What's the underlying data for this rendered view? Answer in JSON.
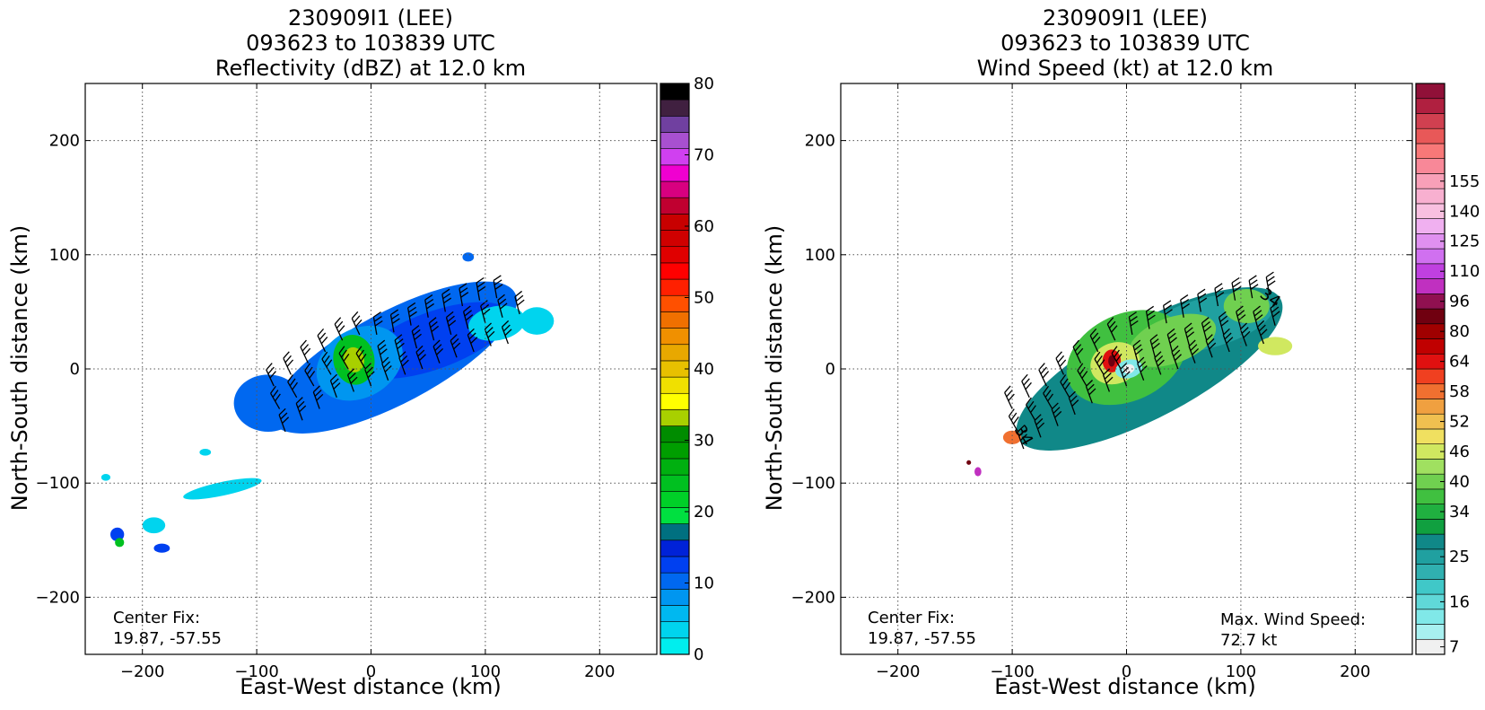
{
  "chart_data": [
    {
      "type": "heatmap",
      "title": [
        "230909I1 (LEE)",
        "093623 to 103839 UTC",
        "Reflectivity (dBZ) at 12.0 km"
      ],
      "xlabel": "East-West distance (km)",
      "ylabel": "North-South distance (km)",
      "xlim": [
        -250,
        250
      ],
      "ylim": [
        -250,
        250
      ],
      "xticks": [
        -200,
        -100,
        0,
        100,
        200
      ],
      "yticks": [
        -200,
        -100,
        0,
        100,
        200
      ],
      "xtick_labels": [
        "−200",
        "−100",
        "0",
        "100",
        "200"
      ],
      "ytick_labels": [
        "−200",
        "−100",
        "0",
        "100",
        "200"
      ],
      "grid": true,
      "colorbar": {
        "min": 0,
        "max": 80,
        "ticks": [
          "0",
          "10",
          "20",
          "30",
          "40",
          "50",
          "60",
          "70",
          "80"
        ],
        "tick_values": [
          0,
          10,
          20,
          30,
          40,
          50,
          60,
          70,
          80
        ],
        "colors": [
          "#00eeee",
          "#00d4ee",
          "#00b8f0",
          "#0096f0",
          "#0068f0",
          "#0040f0",
          "#0022d8",
          "#007080",
          "#00e040",
          "#00d028",
          "#00c020",
          "#00b010",
          "#009e00",
          "#008c00",
          "#a8d000",
          "#ffff00",
          "#f0e000",
          "#e8c000",
          "#e8a800",
          "#f09000",
          "#f07000",
          "#ff5000",
          "#ff2000",
          "#ff0000",
          "#e00000",
          "#d00000",
          "#c80000",
          "#c00030",
          "#d80080",
          "#f000d0",
          "#d040f0",
          "#a850d0",
          "#7040a0",
          "#402040",
          "#000000"
        ]
      },
      "annotations": {
        "center_fix_label": "Center Fix:",
        "center_fix_value": "19.87, -57.55"
      },
      "blobs": [
        {
          "x": 20,
          "y": 10,
          "rx": 120,
          "ry": 40,
          "rot": 28,
          "color": "#0068f0"
        },
        {
          "x": 55,
          "y": 25,
          "rx": 70,
          "ry": 25,
          "rot": 20,
          "color": "#0040f0"
        },
        {
          "x": -90,
          "y": -30,
          "rx": 30,
          "ry": 25,
          "rot": 0,
          "color": "#0068f0"
        },
        {
          "x": -10,
          "y": 5,
          "rx": 40,
          "ry": 30,
          "rot": 30,
          "color": "#0096f0"
        },
        {
          "x": -15,
          "y": 8,
          "rx": 18,
          "ry": 22,
          "rot": 10,
          "color": "#00c020"
        },
        {
          "x": -15,
          "y": 8,
          "rx": 9,
          "ry": 11,
          "rot": 10,
          "color": "#a8d000"
        },
        {
          "x": 110,
          "y": 40,
          "rx": 25,
          "ry": 15,
          "rot": 10,
          "color": "#00d4ee"
        },
        {
          "x": 145,
          "y": 42,
          "rx": 15,
          "ry": 12,
          "rot": 0,
          "color": "#00d4ee"
        },
        {
          "x": 85,
          "y": 98,
          "rx": 5,
          "ry": 4,
          "rot": 0,
          "color": "#0068f0"
        },
        {
          "x": -130,
          "y": -105,
          "rx": 35,
          "ry": 6,
          "rot": 12,
          "color": "#00d4ee"
        },
        {
          "x": -190,
          "y": -137,
          "rx": 10,
          "ry": 7,
          "rot": 0,
          "color": "#00d4ee"
        },
        {
          "x": -183,
          "y": -157,
          "rx": 7,
          "ry": 4,
          "rot": 0,
          "color": "#0040f0"
        },
        {
          "x": -222,
          "y": -145,
          "rx": 6,
          "ry": 6,
          "rot": 0,
          "color": "#0040f0"
        },
        {
          "x": -220,
          "y": -152,
          "rx": 4,
          "ry": 4,
          "rot": 0,
          "color": "#00c020"
        },
        {
          "x": -232,
          "y": -95,
          "rx": 4,
          "ry": 3,
          "rot": 0,
          "color": "#00d4ee"
        },
        {
          "x": -145,
          "y": -73,
          "rx": 5,
          "ry": 3,
          "rot": 0,
          "color": "#00d4ee"
        }
      ],
      "barbs": [
        [
          -85,
          -15
        ],
        [
          -70,
          -5
        ],
        [
          -55,
          5
        ],
        [
          -40,
          15
        ],
        [
          -25,
          25
        ],
        [
          -10,
          30
        ],
        [
          5,
          30
        ],
        [
          20,
          32
        ],
        [
          35,
          38
        ],
        [
          50,
          45
        ],
        [
          65,
          50
        ],
        [
          80,
          55
        ],
        [
          95,
          60
        ],
        [
          110,
          62
        ],
        [
          -80,
          -35
        ],
        [
          -65,
          -25
        ],
        [
          -50,
          -15
        ],
        [
          -35,
          -5
        ],
        [
          -20,
          0
        ],
        [
          -5,
          0
        ],
        [
          10,
          5
        ],
        [
          25,
          10
        ],
        [
          40,
          18
        ],
        [
          55,
          25
        ],
        [
          70,
          30
        ],
        [
          85,
          35
        ],
        [
          100,
          40
        ],
        [
          115,
          45
        ],
        [
          130,
          48
        ],
        [
          -75,
          -55
        ],
        [
          -60,
          -45
        ],
        [
          -45,
          -35
        ],
        [
          -30,
          -25
        ],
        [
          -15,
          -20
        ],
        [
          0,
          -15
        ],
        [
          15,
          -10
        ],
        [
          30,
          -5
        ],
        [
          45,
          0
        ],
        [
          60,
          5
        ],
        [
          75,
          10
        ],
        [
          90,
          15
        ],
        [
          105,
          20
        ],
        [
          120,
          22
        ]
      ]
    },
    {
      "type": "heatmap",
      "title": [
        "230909I1 (LEE)",
        "093623 to 103839 UTC",
        "Wind Speed (kt) at 12.0 km"
      ],
      "xlabel": "East-West distance (km)",
      "ylabel": "North-South distance (km)",
      "xlim": [
        -250,
        250
      ],
      "ylim": [
        -250,
        250
      ],
      "xticks": [
        -200,
        -100,
        0,
        100,
        200
      ],
      "yticks": [
        -200,
        -100,
        0,
        100,
        200
      ],
      "xtick_labels": [
        "−200",
        "−100",
        "0",
        "100",
        "200"
      ],
      "ytick_labels": [
        "−200",
        "−100",
        "0",
        "100",
        "200"
      ],
      "grid": true,
      "colorbar": {
        "ticks": [
          "7",
          "16",
          "25",
          "34",
          "40",
          "46",
          "52",
          "58",
          "64",
          "80",
          "96",
          "110",
          "125",
          "140",
          "155"
        ],
        "tick_index": [
          0.5,
          3.5,
          6.5,
          9.5,
          11.5,
          13.5,
          15.5,
          17.5,
          19.5,
          21.5,
          23.5,
          25.5,
          27.5,
          29.5,
          31.5
        ],
        "colors": [
          "#f0f0f0",
          "#a8f0f0",
          "#80e8e8",
          "#60d8d8",
          "#40c8c8",
          "#30b0b0",
          "#20a0a0",
          "#108888",
          "#10a040",
          "#20b040",
          "#40c040",
          "#70d050",
          "#a0e060",
          "#d0e860",
          "#f0e060",
          "#f0c050",
          "#f0a040",
          "#f07030",
          "#f04020",
          "#e01010",
          "#c00000",
          "#a00000",
          "#700010",
          "#901050",
          "#c030c0",
          "#c040e0",
          "#d070f0",
          "#e090f0",
          "#f0b0f0",
          "#f8c0e0",
          "#f8b0d0",
          "#f8a0b8",
          "#f88898",
          "#f87878",
          "#e85858",
          "#d04050",
          "#b02040",
          "#901038"
        ]
      },
      "annotations": {
        "center_fix_label": "Center Fix:",
        "center_fix_value": "19.87, -57.55",
        "max_wind_label": "Max. Wind Speed:",
        "max_wind_value": "72.7 kt",
        "contour_labels": [
          "34",
          "34"
        ]
      },
      "blobs": [
        {
          "x": 20,
          "y": 0,
          "rx": 130,
          "ry": 42,
          "rot": 28,
          "color": "#108888"
        },
        {
          "x": 70,
          "y": 40,
          "rx": 60,
          "ry": 22,
          "rot": 15,
          "color": "#20a0a0"
        },
        {
          "x": 0,
          "y": 10,
          "rx": 55,
          "ry": 38,
          "rot": 25,
          "color": "#40c040"
        },
        {
          "x": 40,
          "y": 25,
          "rx": 40,
          "ry": 20,
          "rot": 20,
          "color": "#70d050"
        },
        {
          "x": 105,
          "y": 55,
          "rx": 20,
          "ry": 15,
          "rot": 0,
          "color": "#70d050"
        },
        {
          "x": 130,
          "y": 20,
          "rx": 15,
          "ry": 8,
          "rot": 0,
          "color": "#d0e860"
        },
        {
          "x": -10,
          "y": 5,
          "rx": 22,
          "ry": 18,
          "rot": 20,
          "color": "#d0e860"
        },
        {
          "x": -13,
          "y": 7,
          "rx": 8,
          "ry": 10,
          "rot": 0,
          "color": "#e01010"
        },
        {
          "x": -13,
          "y": 7,
          "rx": 3,
          "ry": 5,
          "rot": 0,
          "color": "#700010"
        },
        {
          "x": 2,
          "y": 0,
          "rx": 12,
          "ry": 8,
          "rot": 15,
          "color": "#80e8e8"
        },
        {
          "x": 2,
          "y": 0,
          "rx": 5,
          "ry": 4,
          "rot": 15,
          "color": "#f0f0f0"
        },
        {
          "x": -100,
          "y": -60,
          "rx": 8,
          "ry": 6,
          "rot": 0,
          "color": "#f07030"
        },
        {
          "x": -130,
          "y": -90,
          "rx": 3,
          "ry": 4,
          "rot": 0,
          "color": "#c030c0"
        },
        {
          "x": -138,
          "y": -82,
          "rx": 2,
          "ry": 2,
          "rot": 0,
          "color": "#700010"
        }
      ],
      "barbs": [
        [
          -100,
          -35
        ],
        [
          -85,
          -25
        ],
        [
          -70,
          -15
        ],
        [
          -55,
          -5
        ],
        [
          -40,
          5
        ],
        [
          -25,
          15
        ],
        [
          -10,
          25
        ],
        [
          5,
          30
        ],
        [
          20,
          35
        ],
        [
          35,
          40
        ],
        [
          50,
          45
        ],
        [
          65,
          50
        ],
        [
          80,
          55
        ],
        [
          95,
          60
        ],
        [
          110,
          62
        ],
        [
          125,
          65
        ],
        [
          -95,
          -55
        ],
        [
          -80,
          -45
        ],
        [
          -65,
          -35
        ],
        [
          -50,
          -25
        ],
        [
          -35,
          -15
        ],
        [
          -20,
          -5
        ],
        [
          -5,
          0
        ],
        [
          10,
          5
        ],
        [
          25,
          10
        ],
        [
          40,
          15
        ],
        [
          55,
          20
        ],
        [
          70,
          25
        ],
        [
          85,
          30
        ],
        [
          100,
          35
        ],
        [
          115,
          35
        ],
        [
          130,
          38
        ],
        [
          -90,
          -70
        ],
        [
          -75,
          -60
        ],
        [
          -60,
          -50
        ],
        [
          -45,
          -40
        ],
        [
          -30,
          -30
        ],
        [
          -15,
          -20
        ],
        [
          0,
          -15
        ],
        [
          15,
          -10
        ],
        [
          30,
          -5
        ],
        [
          45,
          0
        ],
        [
          60,
          5
        ],
        [
          75,
          10
        ],
        [
          90,
          15
        ],
        [
          105,
          20
        ],
        [
          120,
          22
        ]
      ]
    }
  ]
}
